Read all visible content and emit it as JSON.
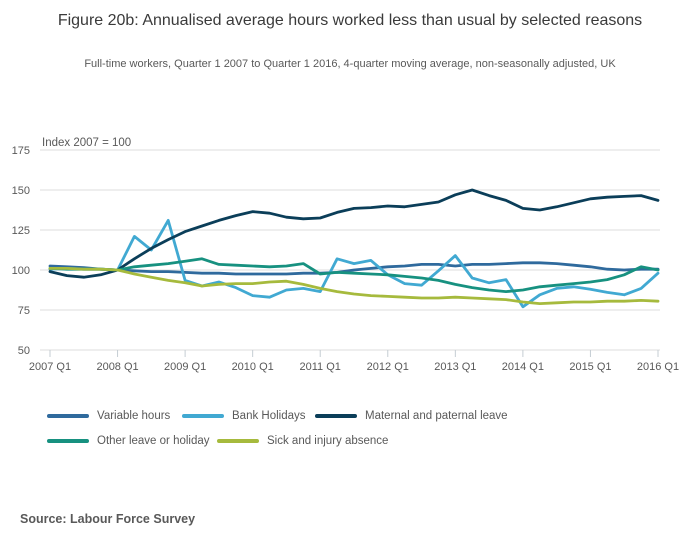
{
  "header": {
    "title": "Figure 20b: Annualised average hours worked less than usual by selected reasons",
    "subtitle": "Full-time workers, Quarter 1 2007 to Quarter 1 2016, 4-quarter moving average, non-seasonally adjusted, UK"
  },
  "source": {
    "label": "Source: Labour Force Survey"
  },
  "chart_data": {
    "type": "line",
    "axis_note": "Index 2007 = 100",
    "x_start": "2007 Q1",
    "x_end": "2016 Q1",
    "x_step": "quarter",
    "x_tick_labels": [
      "2007 Q1",
      "2008 Q1",
      "2009 Q1",
      "2010 Q1",
      "2011 Q1",
      "2012 Q1",
      "2013 Q1",
      "2014 Q1",
      "2015 Q1",
      "2016 Q1"
    ],
    "y_ticks": [
      50,
      75,
      100,
      125,
      150,
      175
    ],
    "ylim": [
      50,
      175
    ],
    "grid": "horizontal",
    "legend_position": "bottom-left",
    "series": [
      {
        "name": "Variable hours",
        "slug": "variable-hours",
        "color": "#2f6a9d",
        "values": [
          102.5,
          102,
          101.5,
          100.5,
          100,
          99.5,
          99,
          99,
          98.5,
          98,
          98,
          97.5,
          97.5,
          97.5,
          97.5,
          98,
          98,
          98.5,
          100,
          101,
          102,
          102.5,
          103.5,
          103.5,
          102.5,
          103.5,
          103.5,
          104,
          104.5,
          104.5,
          104,
          103,
          102,
          100.5,
          100,
          100.5,
          100.5
        ]
      },
      {
        "name": "Bank Holidays",
        "slug": "bank-holidays",
        "color": "#41a9d2",
        "values": [
          100.5,
          101,
          100.5,
          100.5,
          100,
          121,
          112.5,
          131,
          93.5,
          90,
          92.5,
          89,
          84,
          83,
          87.5,
          88.5,
          86.5,
          107,
          104,
          106,
          97,
          91.5,
          90.5,
          99.5,
          109,
          95,
          92,
          94,
          77,
          84.5,
          88.5,
          89.5,
          88,
          86,
          84.5,
          88.5,
          98
        ]
      },
      {
        "name": "Maternal and paternal leave",
        "slug": "maternal-and-paternal-leave",
        "color": "#0b3e59",
        "values": [
          99,
          96.5,
          95.5,
          97,
          100,
          107,
          113.5,
          119,
          124,
          127.5,
          131,
          134,
          136.5,
          135.5,
          133,
          132,
          132.5,
          136,
          138.5,
          139,
          140,
          139.5,
          141,
          142.5,
          147,
          150,
          146.5,
          143.5,
          138.5,
          137.5,
          139.5,
          142,
          144.5,
          145.5,
          146,
          146.5,
          143.5
        ]
      },
      {
        "name": "Other leave or holiday",
        "slug": "other-leave-or-holiday",
        "color": "#179180",
        "values": [
          101,
          100.5,
          100.5,
          100.5,
          100,
          102,
          103,
          104,
          105.5,
          107,
          103.5,
          103,
          102.5,
          102,
          102.5,
          104,
          97.5,
          98.5,
          98,
          97.5,
          97,
          96,
          95,
          93.5,
          91,
          89,
          87.5,
          86.5,
          87.5,
          89.5,
          90.5,
          91.5,
          92.5,
          94,
          97,
          102,
          100
        ]
      },
      {
        "name": "Sick and injury absence",
        "slug": "sick-and-injury-absence",
        "color": "#a6ba3d",
        "values": [
          101,
          101,
          100.5,
          100.5,
          100,
          97.5,
          95.5,
          93.5,
          92,
          90,
          91,
          91.5,
          91.5,
          92.5,
          93,
          91,
          88.5,
          86.5,
          85,
          84,
          83.5,
          83,
          82.5,
          82.5,
          83,
          82.5,
          82,
          81.5,
          80,
          79,
          79.5,
          80,
          80,
          80.5,
          80.5,
          81,
          80.5
        ]
      }
    ]
  }
}
